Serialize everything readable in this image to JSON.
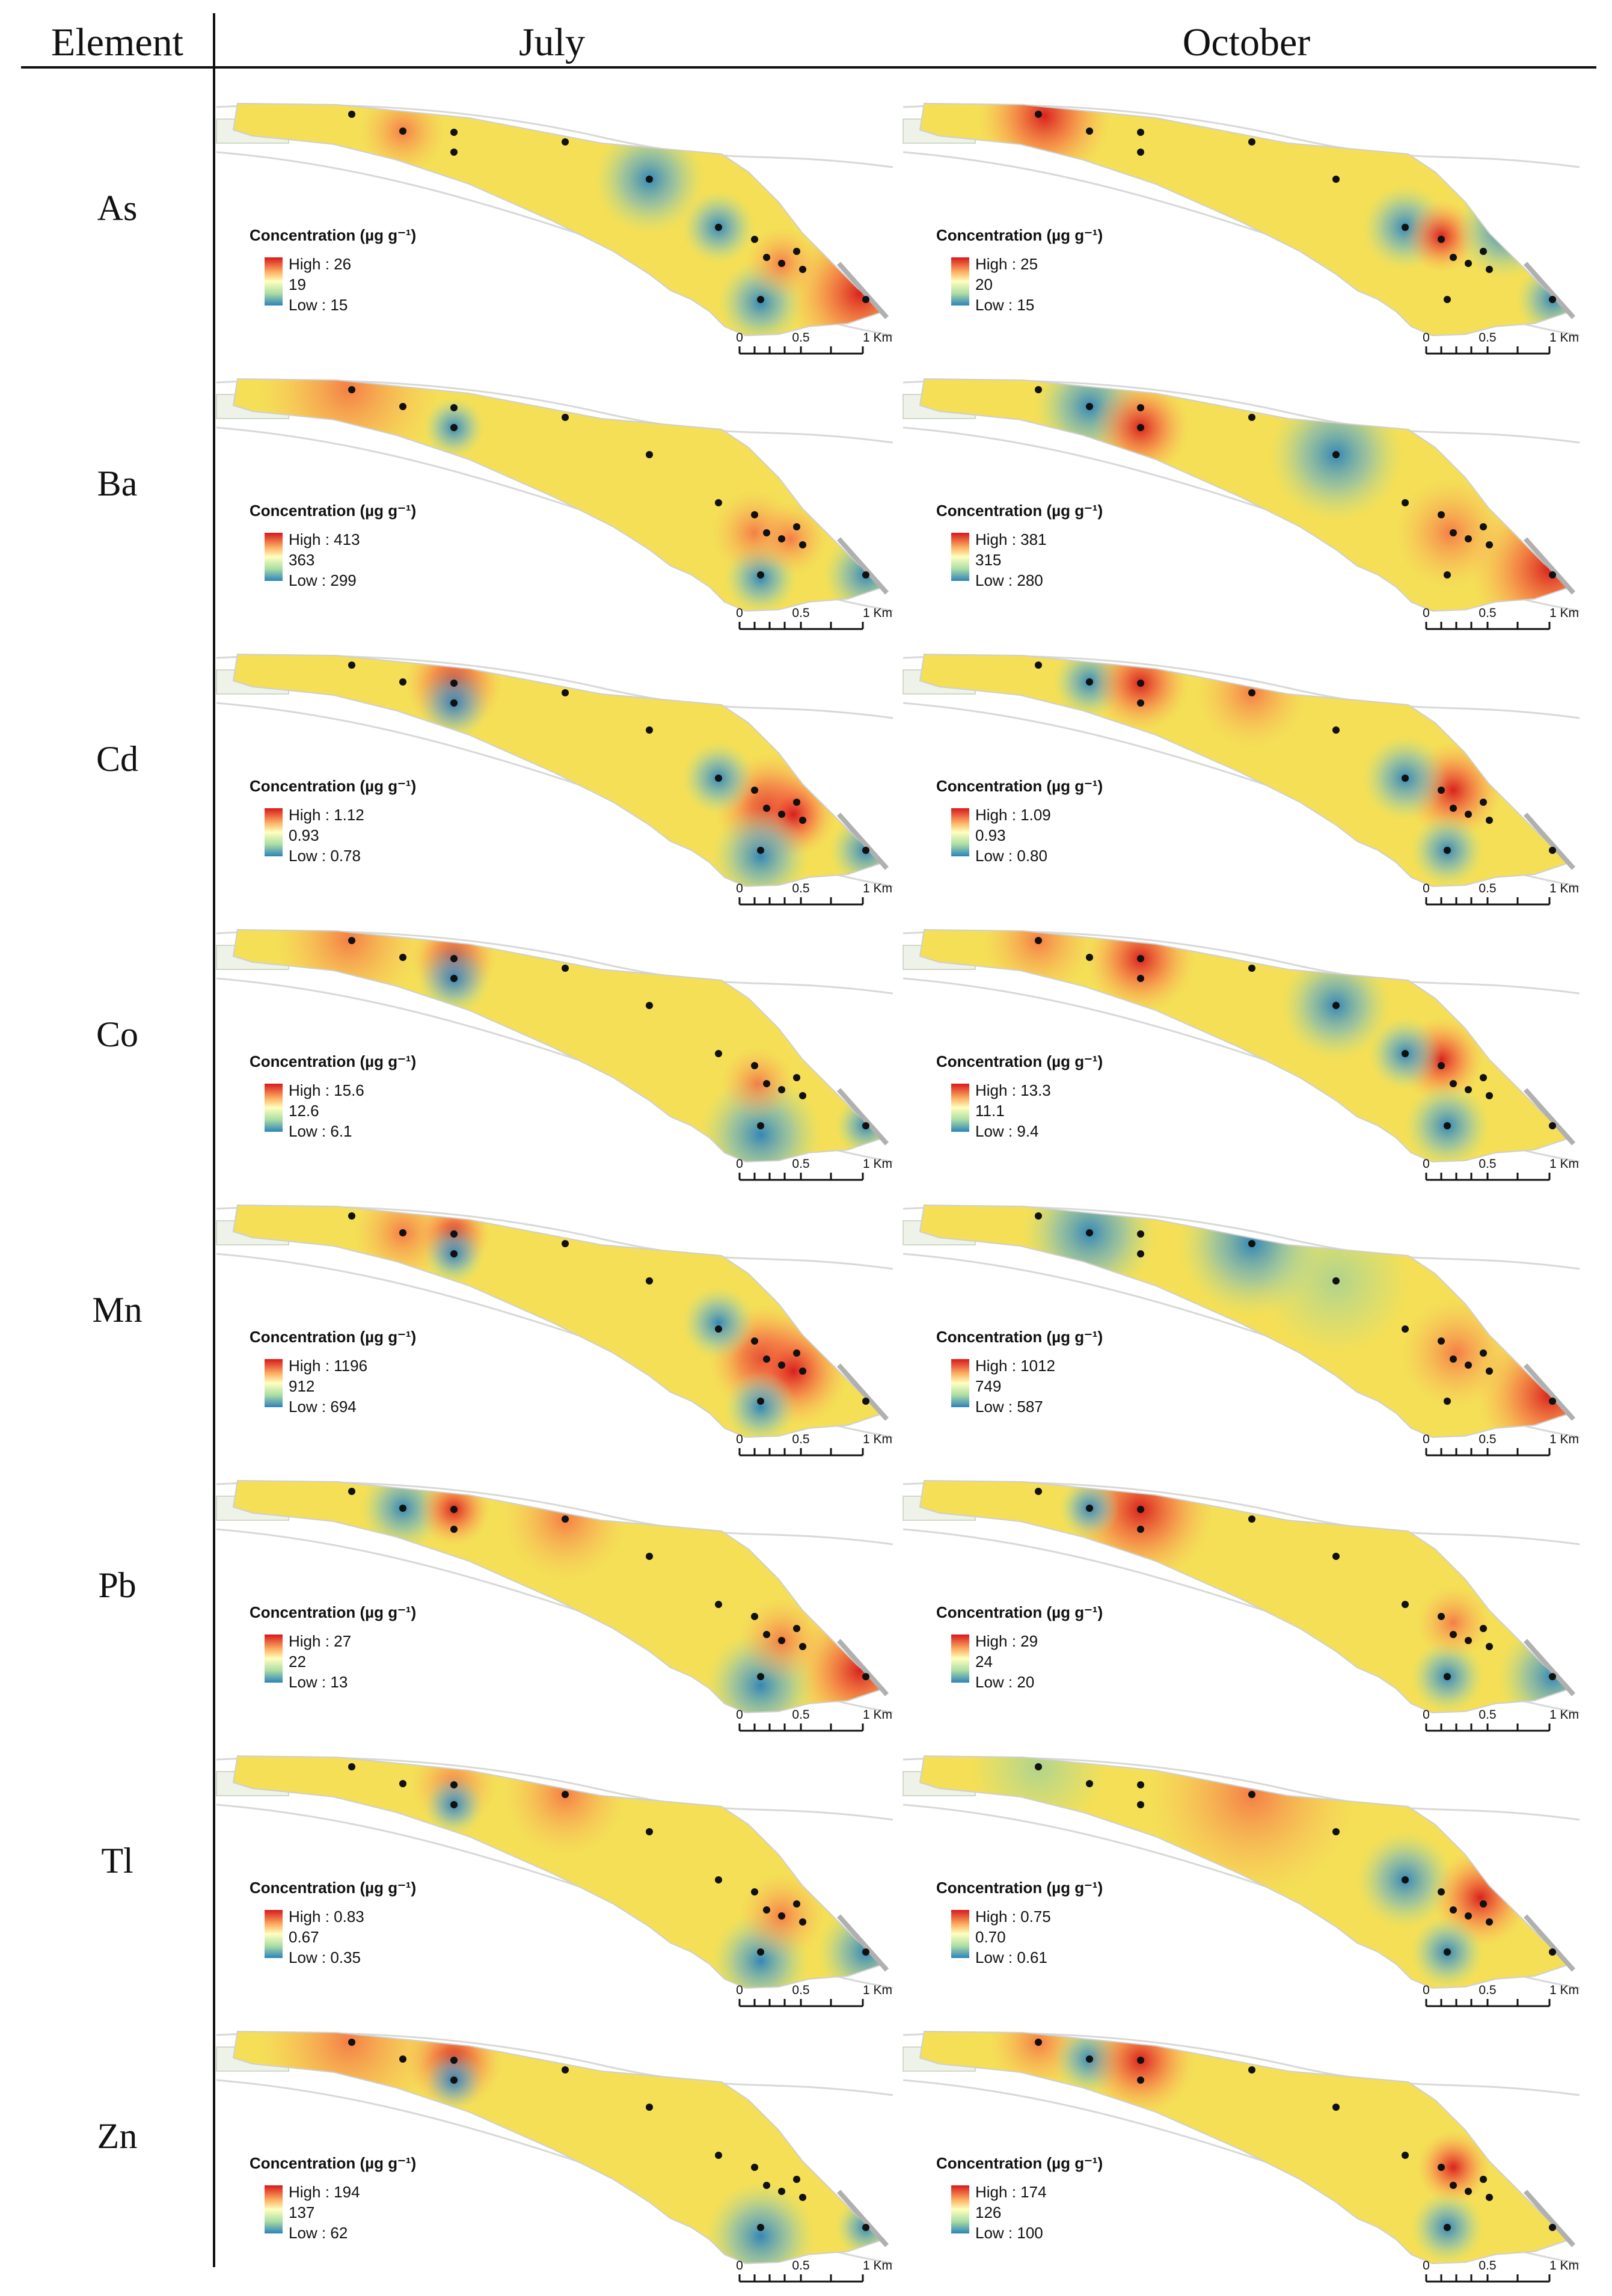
{
  "header": {
    "element_label": "Element",
    "columns": [
      "July",
      "October"
    ]
  },
  "legend": {
    "title": "Concentration (µg g⁻¹)",
    "high_prefix": "High : ",
    "low_prefix": "Low : "
  },
  "scale_bar": {
    "labels": [
      "0",
      "0.5",
      "1 Km"
    ]
  },
  "colors": {
    "high": "#d7191c",
    "mid_high": "#f07a2e",
    "mid": "#f3e64c",
    "mid_low": "#b7d65a",
    "low": "#2b83ba"
  },
  "rows": [
    {
      "element": "As",
      "july": {
        "high": "26",
        "mid": "19",
        "low": "15"
      },
      "october": {
        "high": "25",
        "mid": "20",
        "low": "15"
      }
    },
    {
      "element": "Ba",
      "july": {
        "high": "413",
        "mid": "363",
        "low": "299"
      },
      "october": {
        "high": "381",
        "mid": "315",
        "low": "280"
      }
    },
    {
      "element": "Cd",
      "july": {
        "high": "1.12",
        "mid": "0.93",
        "low": "0.78"
      },
      "october": {
        "high": "1.09",
        "mid": "0.93",
        "low": "0.80"
      }
    },
    {
      "element": "Co",
      "july": {
        "high": "15.6",
        "mid": "12.6",
        "low": "6.1"
      },
      "october": {
        "high": "13.3",
        "mid": "11.1",
        "low": "9.4"
      }
    },
    {
      "element": "Mn",
      "july": {
        "high": "1196",
        "mid": "912",
        "low": "694"
      },
      "october": {
        "high": "1012",
        "mid": "749",
        "low": "587"
      }
    },
    {
      "element": "Pb",
      "july": {
        "high": "27",
        "mid": "22",
        "low": "13"
      },
      "october": {
        "high": "29",
        "mid": "24",
        "low": "20"
      }
    },
    {
      "element": "Tl",
      "july": {
        "high": "0.83",
        "mid": "0.67",
        "low": "0.35"
      },
      "october": {
        "high": "0.75",
        "mid": "0.70",
        "low": "0.61"
      }
    },
    {
      "element": "Zn",
      "july": {
        "high": "194",
        "mid": "137",
        "low": "62"
      },
      "october": {
        "high": "174",
        "mid": "126",
        "low": "100"
      }
    }
  ]
}
